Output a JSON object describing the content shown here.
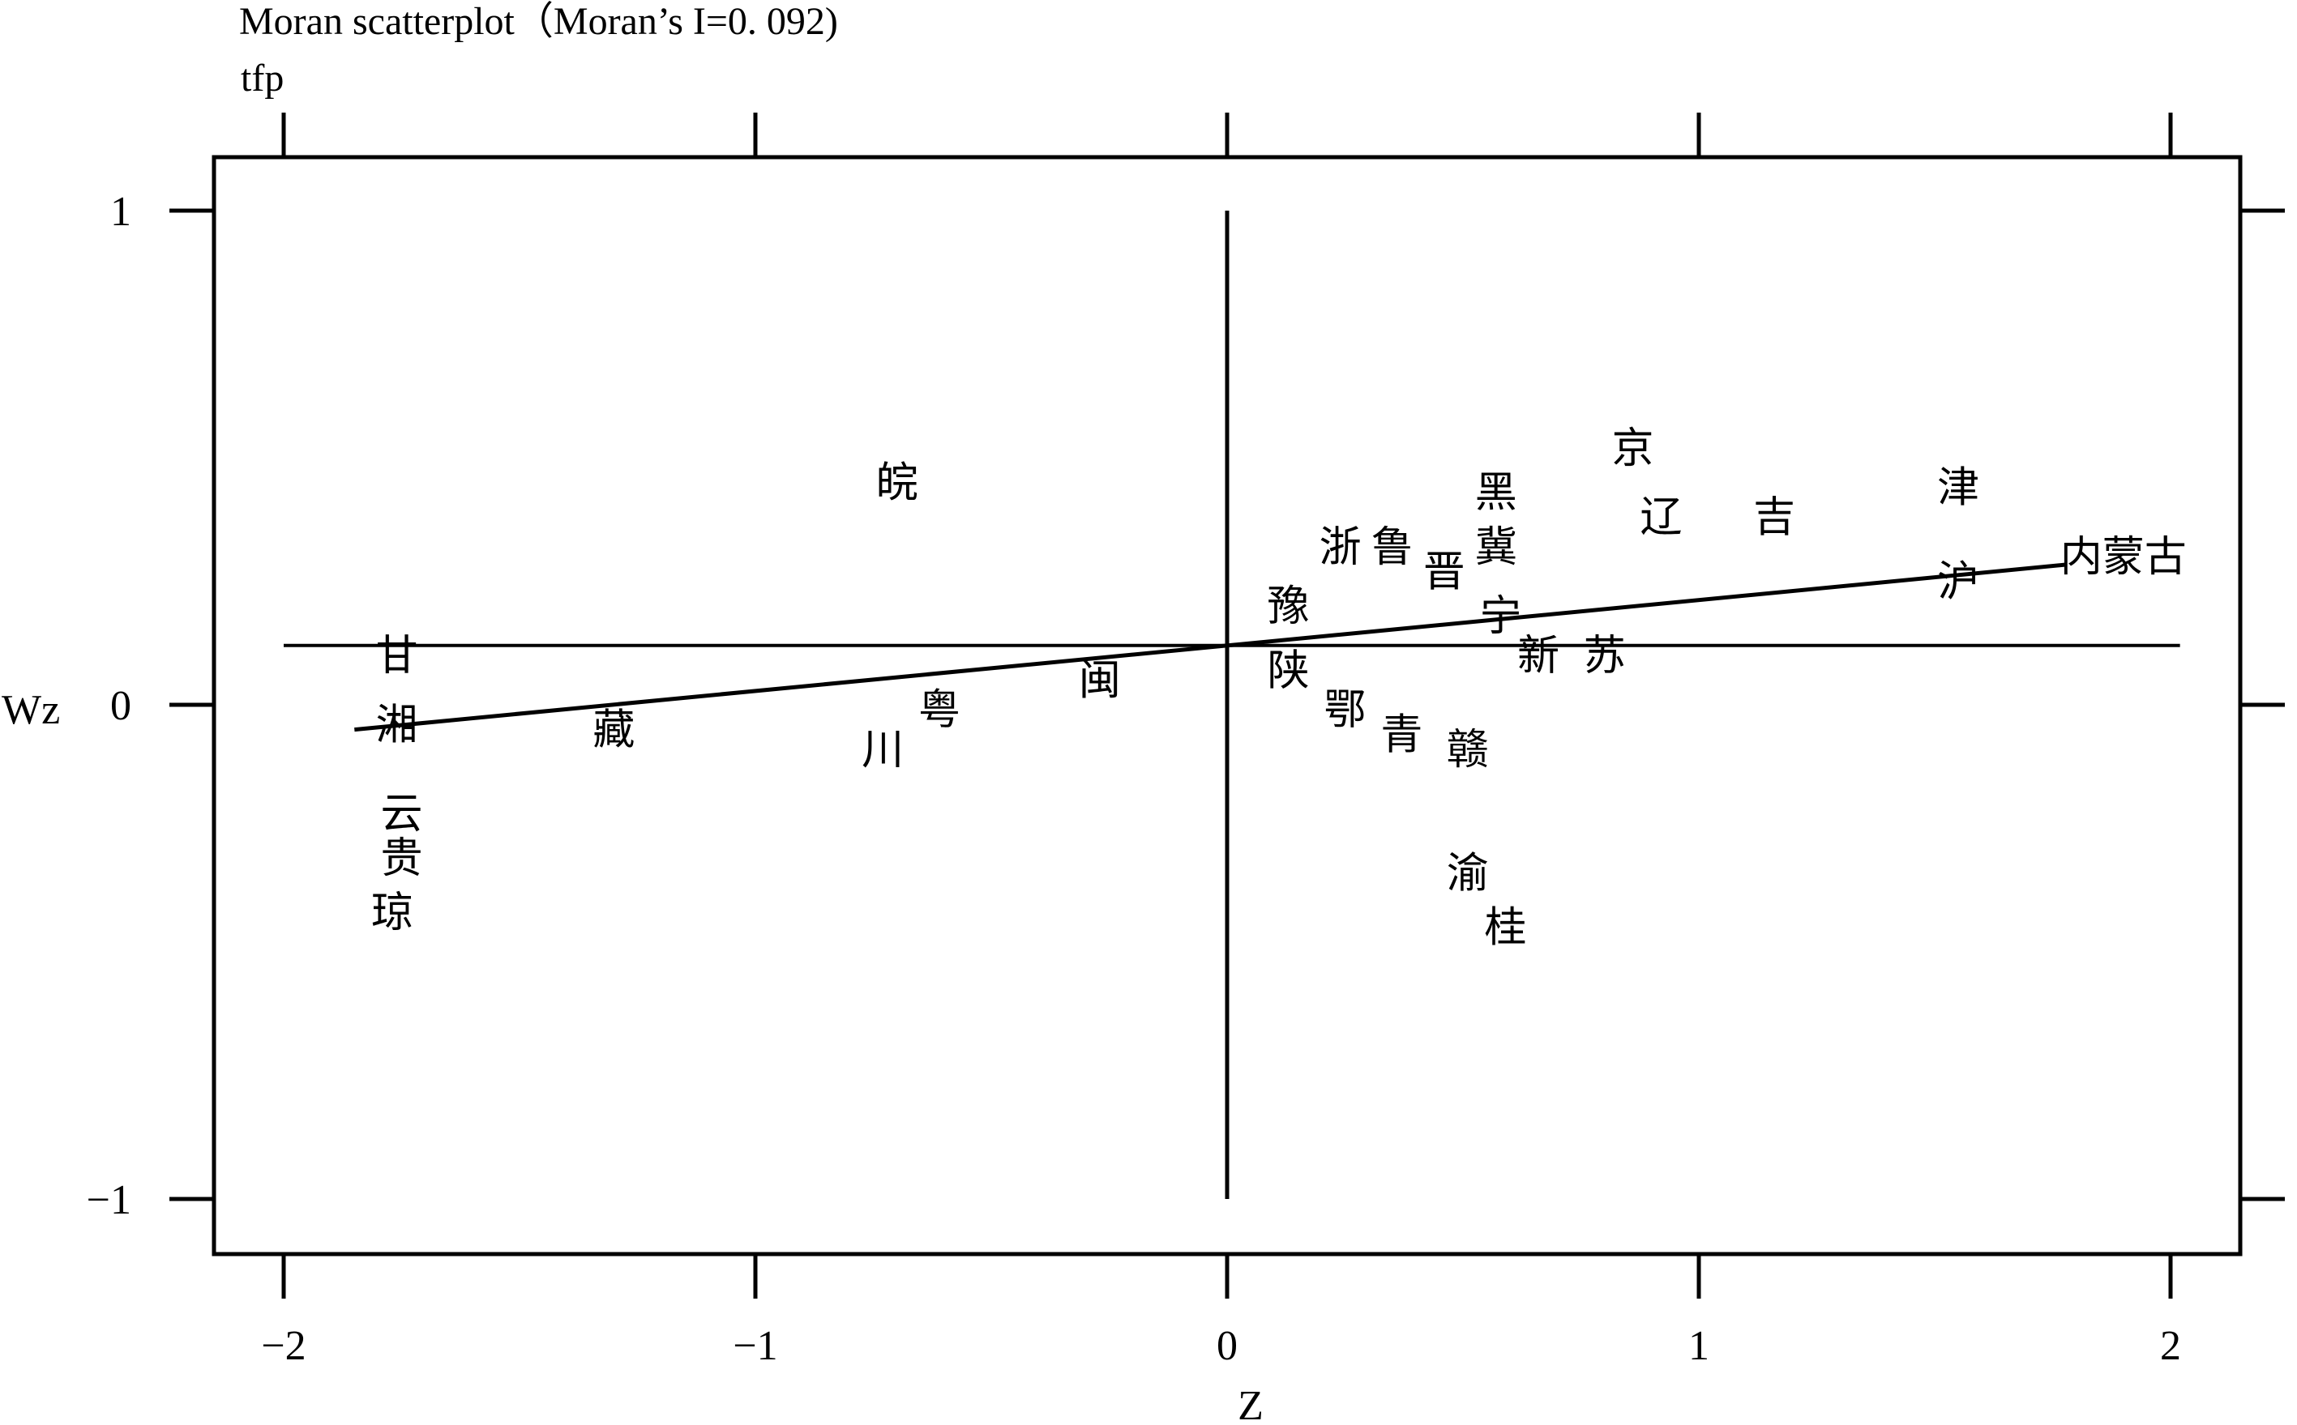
{
  "chart_data": {
    "type": "scatter",
    "title": "Moran scatterplot（Moran’s I=0. 092)",
    "subtitle": "tfp",
    "xlabel": "Z",
    "ylabel": "Wz",
    "xlim": [
      -2.14,
      2.14
    ],
    "ylim": [
      -1.12,
      1.12
    ],
    "x_ticks": [
      -2,
      -1,
      0,
      1,
      2
    ],
    "x_tick_labels": [
      "−2",
      "−1",
      "0",
      "1",
      "2"
    ],
    "y_ticks": [
      -1,
      0,
      1
    ],
    "y_tick_labels": [
      "−1",
      "0",
      "1"
    ],
    "grid": false,
    "reference_lines": {
      "vertical_x": 0,
      "horizontal_y": 0.12
    },
    "fit_line": {
      "slope": 0.092,
      "intercept": 0.12,
      "x_range": [
        -1.85,
        1.78
      ]
    },
    "points": [
      {
        "label": "皖",
        "x": -0.7,
        "y": 0.45
      },
      {
        "label": "甘",
        "x": -1.76,
        "y": 0.1
      },
      {
        "label": "湘",
        "x": -1.76,
        "y": -0.04
      },
      {
        "label": "藏",
        "x": -1.3,
        "y": -0.05
      },
      {
        "label": "川",
        "x": -0.73,
        "y": -0.09
      },
      {
        "label": "粤",
        "x": -0.61,
        "y": -0.01
      },
      {
        "label": "闽",
        "x": -0.27,
        "y": 0.05
      },
      {
        "label": "云",
        "x": -1.75,
        "y": -0.22
      },
      {
        "label": "贵",
        "x": -1.75,
        "y": -0.31
      },
      {
        "label": "琼",
        "x": -1.77,
        "y": -0.42
      },
      {
        "label": "豫",
        "x": 0.13,
        "y": 0.2
      },
      {
        "label": "陕",
        "x": 0.13,
        "y": 0.07
      },
      {
        "label": "鄂",
        "x": 0.25,
        "y": -0.01
      },
      {
        "label": "青",
        "x": 0.37,
        "y": -0.06
      },
      {
        "label": "赣",
        "x": 0.51,
        "y": -0.09
      },
      {
        "label": "渝",
        "x": 0.51,
        "y": -0.34
      },
      {
        "label": "桂",
        "x": 0.59,
        "y": -0.45
      },
      {
        "label": "浙",
        "x": 0.24,
        "y": 0.32
      },
      {
        "label": "鲁",
        "x": 0.35,
        "y": 0.32
      },
      {
        "label": "晋",
        "x": 0.46,
        "y": 0.27
      },
      {
        "label": "冀",
        "x": 0.57,
        "y": 0.32
      },
      {
        "label": "黑",
        "x": 0.57,
        "y": 0.43
      },
      {
        "label": "宁",
        "x": 0.58,
        "y": 0.18
      },
      {
        "label": "新",
        "x": 0.66,
        "y": 0.1
      },
      {
        "label": "苏",
        "x": 0.8,
        "y": 0.1
      },
      {
        "label": "京",
        "x": 0.86,
        "y": 0.52
      },
      {
        "label": "辽",
        "x": 0.92,
        "y": 0.38
      },
      {
        "label": "吉",
        "x": 1.16,
        "y": 0.38
      },
      {
        "label": "津",
        "x": 1.55,
        "y": 0.44
      },
      {
        "label": "沪",
        "x": 1.55,
        "y": 0.25
      },
      {
        "label": "内蒙古",
        "x": 1.9,
        "y": 0.3
      }
    ]
  }
}
